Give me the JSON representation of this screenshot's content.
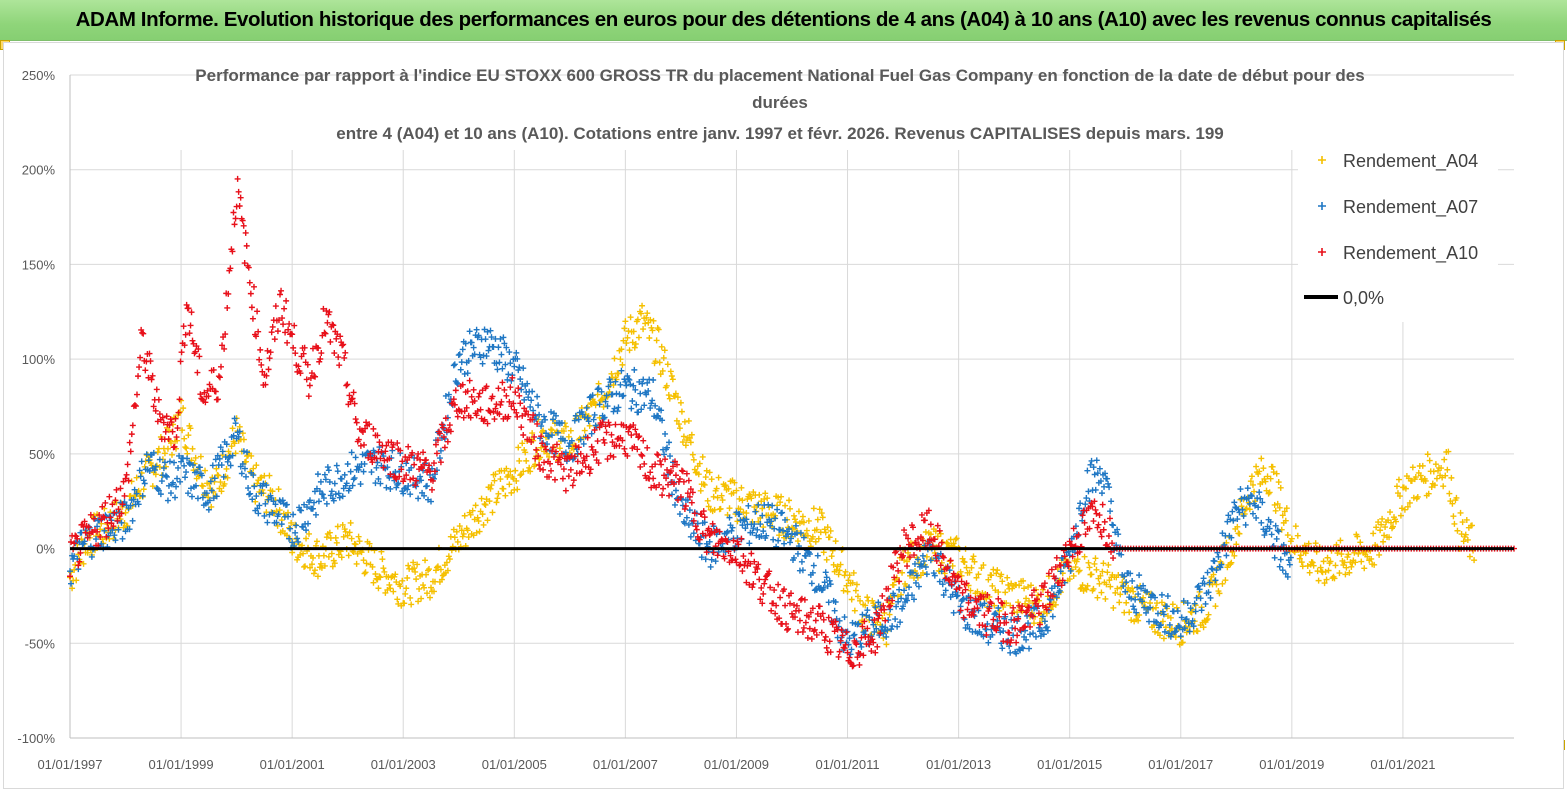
{
  "header": {
    "title": "ADAM Informe. Evolution historique des performances en euros pour des détentions de 4 ans (A04) à 10 ans (A10) avec les revenus connus capitalisés"
  },
  "colors": {
    "header_bg": "#8fd57a",
    "a04": "#f5c000",
    "a07": "#1f77c4",
    "a10": "#e8101a",
    "zero": "#000000",
    "grid": "#d9d9d9"
  },
  "chart_data": {
    "type": "scatter",
    "title_lines": [
      "Performance par rapport à l'indice EU STOXX 600 GROSS TR  du placement National Fuel Gas Company en fonction de la date de début pour des",
      "durées",
      "entre 4 (A04) et 10 ans (A10). Cotations entre janv. 1997 et févr. 2026. Revenus CAPITALISES depuis mars. 199"
    ],
    "xlabel": "",
    "ylabel": "",
    "xlim": [
      "1997-01-01",
      "2023-01-01"
    ],
    "ylim": [
      -100,
      250
    ],
    "y_ticks": [
      "250%",
      "200%",
      "150%",
      "100%",
      "50%",
      "0%",
      "-50%",
      "-100%"
    ],
    "y_tick_values": [
      250,
      200,
      150,
      100,
      50,
      0,
      -50,
      -100
    ],
    "x_ticks": [
      "01/01/1997",
      "01/01/1999",
      "01/01/2001",
      "01/01/2003",
      "01/01/2005",
      "01/01/2007",
      "01/01/2009",
      "01/01/2011",
      "01/01/2013",
      "01/01/2015",
      "01/01/2017",
      "01/01/2019",
      "01/01/2021"
    ],
    "x_tick_years": [
      1997,
      1999,
      2001,
      2003,
      2005,
      2007,
      2009,
      2011,
      2013,
      2015,
      2017,
      2019,
      2021
    ],
    "grid": "vertical-and-horizontal",
    "legend_position": "top-right",
    "series": [
      {
        "name": "Rendement_A04",
        "marker": "+",
        "x": [
          1997.0,
          1997.3,
          1997.6,
          1998.0,
          1998.4,
          1998.8,
          1999.0,
          1999.3,
          1999.6,
          2000.0,
          2000.3,
          2000.7,
          2001.0,
          2001.5,
          2002.0,
          2002.5,
          2003.0,
          2003.5,
          2004.0,
          2004.5,
          2005.0,
          2005.5,
          2006.0,
          2006.5,
          2007.0,
          2007.3,
          2007.6,
          2008.0,
          2008.5,
          2009.0,
          2009.5,
          2010.0,
          2010.5,
          2011.0,
          2011.3,
          2011.7,
          2012.0,
          2012.5,
          2013.0,
          2013.5,
          2014.0,
          2014.5,
          2015.0,
          2015.5,
          2016.0,
          2016.5,
          2017.0,
          2017.5,
          2018.0,
          2018.3,
          2018.6,
          2019.0,
          2019.5,
          2020.0,
          2020.5,
          2021.0,
          2021.5,
          2021.8,
          2022.0,
          2022.3
        ],
        "y": [
          -15,
          5,
          10,
          20,
          40,
          55,
          70,
          45,
          30,
          60,
          35,
          25,
          5,
          -5,
          5,
          -10,
          -20,
          -15,
          5,
          25,
          40,
          60,
          55,
          75,
          110,
          120,
          105,
          70,
          30,
          25,
          20,
          15,
          10,
          -15,
          -35,
          -40,
          -10,
          0,
          -5,
          -20,
          -25,
          -30,
          -10,
          -15,
          -25,
          -35,
          -40,
          -30,
          10,
          35,
          40,
          5,
          -10,
          -5,
          0,
          30,
          40,
          45,
          10,
          0
        ]
      },
      {
        "name": "Rendement_A07",
        "marker": "+",
        "x": [
          1997.0,
          1997.3,
          1997.6,
          1998.0,
          1998.4,
          1998.8,
          1999.0,
          1999.5,
          2000.0,
          2000.3,
          2000.7,
          2001.0,
          2001.5,
          2002.0,
          2002.5,
          2003.0,
          2003.5,
          2004.0,
          2004.5,
          2005.0,
          2005.5,
          2006.0,
          2006.5,
          2007.0,
          2007.5,
          2008.0,
          2008.5,
          2009.0,
          2009.5,
          2010.0,
          2010.5,
          2011.0,
          2011.5,
          2012.0,
          2012.5,
          2013.0,
          2013.5,
          2014.0,
          2014.5,
          2015.0,
          2015.3,
          2015.6,
          2016.0,
          2016.5,
          2017.0,
          2017.5,
          2018.0,
          2018.3,
          2018.6,
          2019.0
        ],
        "y": [
          -10,
          5,
          10,
          15,
          45,
          35,
          40,
          30,
          60,
          30,
          20,
          10,
          30,
          40,
          45,
          40,
          35,
          100,
          110,
          95,
          65,
          55,
          75,
          85,
          80,
          20,
          0,
          10,
          15,
          5,
          -15,
          -50,
          -40,
          -30,
          0,
          -30,
          -40,
          -45,
          -40,
          -5,
          35,
          40,
          -20,
          -30,
          -40,
          -20,
          20,
          25,
          10,
          -15
        ]
      },
      {
        "name": "Rendement_A10",
        "marker": "+",
        "x": [
          1997.0,
          1997.3,
          1997.6,
          1998.0,
          1998.3,
          1998.6,
          1998.9,
          1999.1,
          1999.4,
          1999.7,
          2000.0,
          2000.2,
          2000.5,
          2000.8,
          2001.0,
          2001.3,
          2001.6,
          2001.9,
          2002.2,
          2002.5,
          2003.0,
          2003.5,
          2004.0,
          2004.5,
          2005.0,
          2005.5,
          2006.0,
          2006.5,
          2007.0,
          2007.5,
          2008.0,
          2008.5,
          2009.0,
          2009.5,
          2010.0,
          2010.5,
          2011.0,
          2011.5,
          2012.0,
          2012.5,
          2013.0,
          2013.5,
          2014.0,
          2014.5,
          2015.0,
          2015.5,
          2015.8
        ],
        "y": [
          -5,
          5,
          15,
          30,
          110,
          70,
          60,
          130,
          80,
          90,
          190,
          150,
          90,
          130,
          110,
          90,
          120,
          100,
          60,
          55,
          45,
          40,
          80,
          75,
          80,
          50,
          40,
          55,
          60,
          40,
          35,
          5,
          0,
          -20,
          -35,
          -40,
          -55,
          -45,
          0,
          10,
          -25,
          -35,
          -40,
          -30,
          0,
          20,
          5
        ]
      },
      {
        "name": "0,0%",
        "type": "line",
        "x": [
          1997.0,
          2023.0
        ],
        "y": [
          0,
          0
        ]
      }
    ]
  }
}
